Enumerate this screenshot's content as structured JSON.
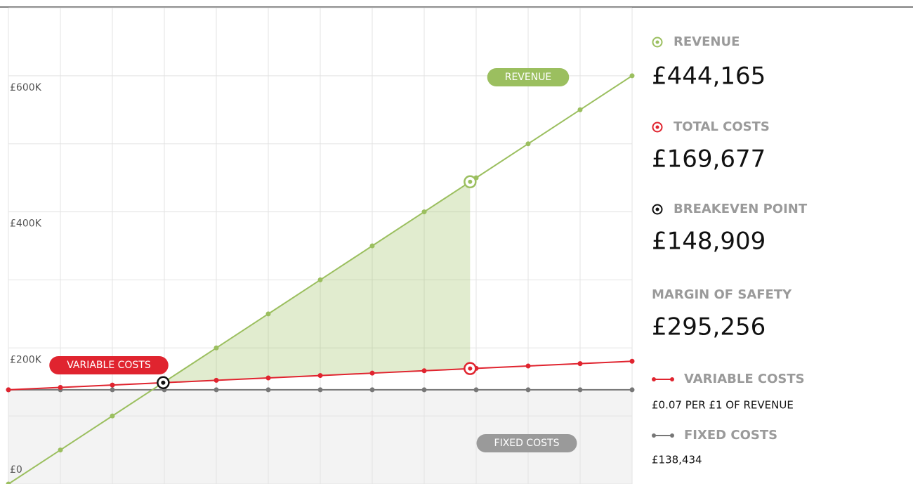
{
  "chart_data": {
    "type": "line",
    "xlim": [
      0,
      600000
    ],
    "ylim": [
      0,
      700000
    ],
    "yticks": [
      {
        "value": 0,
        "label": "£0"
      },
      {
        "value": 200000,
        "label": "£200K"
      },
      {
        "value": 400000,
        "label": "£400K"
      },
      {
        "value": 600000,
        "label": "£600K"
      }
    ],
    "ygrid": [
      0,
      100000,
      200000,
      300000,
      400000,
      500000,
      600000,
      700000
    ],
    "grid": true,
    "x": [
      0,
      50000,
      100000,
      150000,
      200000,
      250000,
      300000,
      350000,
      400000,
      450000,
      500000,
      550000,
      600000
    ],
    "series": [
      {
        "name": "REVENUE",
        "color": "#9bbf5f",
        "values": [
          0,
          50000,
          100000,
          150000,
          200000,
          250000,
          300000,
          350000,
          400000,
          450000,
          500000,
          550000,
          600000
        ]
      },
      {
        "name": "VARIABLE COSTS",
        "color": "#e0242f",
        "values": [
          138434,
          141934,
          145434,
          148934,
          152434,
          155934,
          159434,
          162934,
          166434,
          169934,
          173434,
          176934,
          180434
        ]
      },
      {
        "name": "FIXED COSTS",
        "color": "#777777",
        "values": [
          138434,
          138434,
          138434,
          138434,
          138434,
          138434,
          138434,
          138434,
          138434,
          138434,
          138434,
          138434,
          138434
        ]
      }
    ],
    "highlights": [
      {
        "x": 444165,
        "y": 444165,
        "color": "#9bbf5f"
      },
      {
        "x": 444165,
        "y": 169677,
        "color": "#e0242f"
      },
      {
        "x": 148909,
        "y": 148909,
        "color": "#111111"
      }
    ]
  },
  "panel": [
    {
      "label": "REVENUE",
      "value": "£444,165",
      "icon": "ring",
      "color": "#9bbf5f"
    },
    {
      "label": "TOTAL COSTS",
      "value": "£169,677",
      "icon": "ring",
      "color": "#e0242f"
    },
    {
      "label": "BREAKEVEN POINT",
      "value": "£148,909",
      "icon": "ring",
      "color": "#111111"
    },
    {
      "label": "MARGIN OF SAFETY",
      "value": "£295,256"
    },
    {
      "label": "VARIABLE COSTS",
      "value": "£0.07 PER £1 OF REVENUE",
      "icon": "line",
      "color": "#e0242f"
    },
    {
      "label": "FIXED COSTS",
      "value": "£138,434",
      "icon": "line",
      "color": "#777777"
    }
  ]
}
